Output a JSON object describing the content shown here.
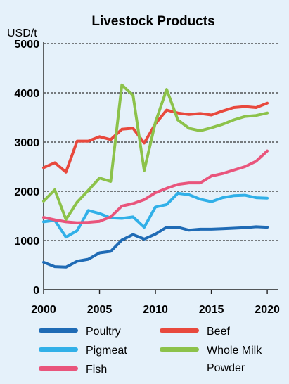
{
  "chart_data": {
    "type": "line",
    "title": "Livestock Products",
    "ylabel": "USD/t",
    "xlabel": "",
    "ylim": [
      0,
      5000
    ],
    "xlim": [
      2000,
      2021
    ],
    "yticks": [
      "0",
      "1000",
      "2000",
      "3000",
      "4000",
      "5000"
    ],
    "xticks": [
      "2000",
      "2005",
      "2010",
      "2015",
      "2020"
    ],
    "grid": "horizontal",
    "legend_position": "bottom",
    "x": [
      2000,
      2001,
      2002,
      2003,
      2004,
      2005,
      2006,
      2007,
      2008,
      2009,
      2010,
      2011,
      2012,
      2013,
      2014,
      2015,
      2016,
      2017,
      2018,
      2019,
      2020
    ],
    "series": [
      {
        "name": "Poultry",
        "color": "#1f6bb5",
        "values": [
          560,
          470,
          460,
          580,
          620,
          750,
          780,
          1010,
          1120,
          1030,
          1130,
          1270,
          1270,
          1210,
          1230,
          1230,
          1240,
          1250,
          1260,
          1280,
          1270
        ]
      },
      {
        "name": "Pigmeat",
        "color": "#31b0e8",
        "values": [
          1380,
          1410,
          1070,
          1200,
          1610,
          1550,
          1460,
          1450,
          1480,
          1270,
          1680,
          1730,
          1960,
          1930,
          1840,
          1790,
          1870,
          1910,
          1920,
          1870,
          1860
        ]
      },
      {
        "name": "Fish",
        "color": "#e9557c",
        "values": [
          1470,
          1420,
          1380,
          1360,
          1370,
          1390,
          1480,
          1700,
          1750,
          1830,
          1970,
          2060,
          2140,
          2170,
          2170,
          2310,
          2360,
          2430,
          2500,
          2610,
          2820
        ]
      },
      {
        "name": "Beef",
        "color": "#e8493d",
        "values": [
          2480,
          2580,
          2390,
          3020,
          3020,
          3110,
          3050,
          3260,
          3280,
          2980,
          3370,
          3650,
          3590,
          3560,
          3580,
          3550,
          3630,
          3700,
          3720,
          3700,
          3790
        ]
      },
      {
        "name": "Whole Milk Powder",
        "color": "#8cc24a",
        "values": [
          1800,
          2030,
          1430,
          1780,
          2020,
          2270,
          2200,
          4160,
          3950,
          2420,
          3400,
          4070,
          3450,
          3280,
          3230,
          3290,
          3360,
          3450,
          3520,
          3540,
          3590
        ]
      }
    ],
    "legend": [
      {
        "label": "Poultry",
        "color": "#1f6bb5"
      },
      {
        "label": "Pigmeat",
        "color": "#31b0e8"
      },
      {
        "label": "Fish",
        "color": "#e9557c"
      },
      {
        "label": "Beef",
        "color": "#e8493d"
      },
      {
        "label": "Whole Milk\nPowder",
        "color": "#8cc24a"
      }
    ]
  }
}
